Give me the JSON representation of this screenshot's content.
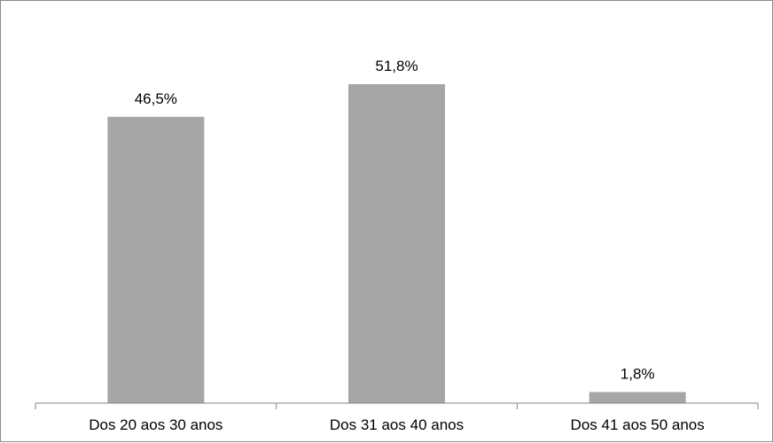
{
  "chart_data": {
    "type": "bar",
    "categories": [
      "Dos 20 aos 30 anos",
      "Dos 31 aos 40 anos",
      "Dos 41 aos 50 anos"
    ],
    "values": [
      46.5,
      51.8,
      1.8
    ],
    "data_labels": [
      "46,5%",
      "51,8%",
      "1,8%"
    ],
    "title": "",
    "xlabel": "",
    "ylabel": "",
    "ylim": [
      0,
      55
    ],
    "grid": false,
    "legend": "none",
    "bar_color": "#a6a6a6",
    "axis_color": "#868686"
  }
}
